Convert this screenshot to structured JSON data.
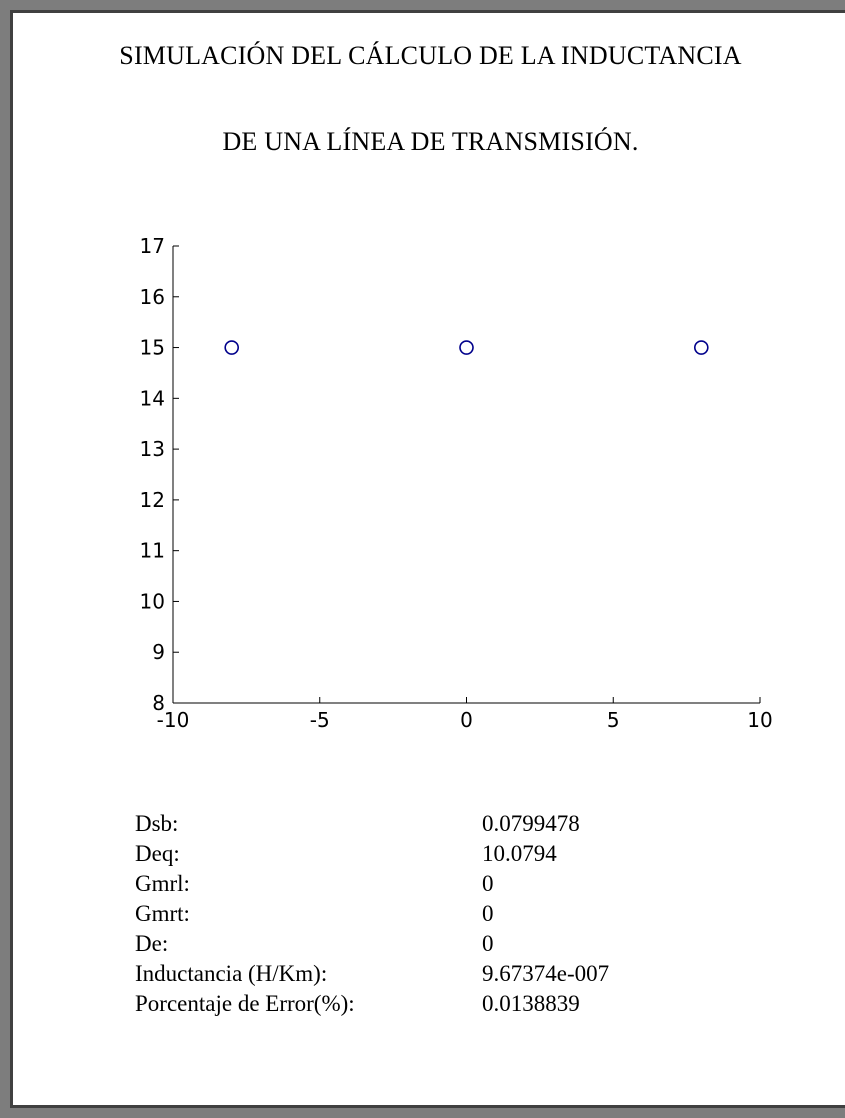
{
  "window": {
    "title_line1": "SIMULACIÓN DEL CÁLCULO DE LA INDUCTANCIA",
    "title_line2": "DE UNA LÍNEA DE TRANSMISIÓN."
  },
  "chart_data": {
    "type": "scatter",
    "x": [
      -8,
      0,
      8
    ],
    "y": [
      15,
      15,
      15
    ],
    "xlim": [
      -10,
      10
    ],
    "ylim": [
      8,
      17
    ],
    "xticks": [
      "-10",
      "-5",
      "0",
      "5",
      "10"
    ],
    "yticks": [
      "8",
      "9",
      "10",
      "11",
      "12",
      "13",
      "14",
      "15",
      "16",
      "17"
    ],
    "marker": "circle-open",
    "marker_color": "#00008b",
    "grid": false
  },
  "results": [
    {
      "label": "Dsb:",
      "value": "0.0799478"
    },
    {
      "label": "Deq:",
      "value": "10.0794"
    },
    {
      "label": "Gmrl:",
      "value": "0"
    },
    {
      "label": "Gmrt:",
      "value": "0"
    },
    {
      "label": "De:",
      "value": "0"
    },
    {
      "label": "Inductancia (H/Km):",
      "value": "9.67374e-007"
    },
    {
      "label": "Porcentaje de Error(%):",
      "value": "0.0138839"
    }
  ]
}
